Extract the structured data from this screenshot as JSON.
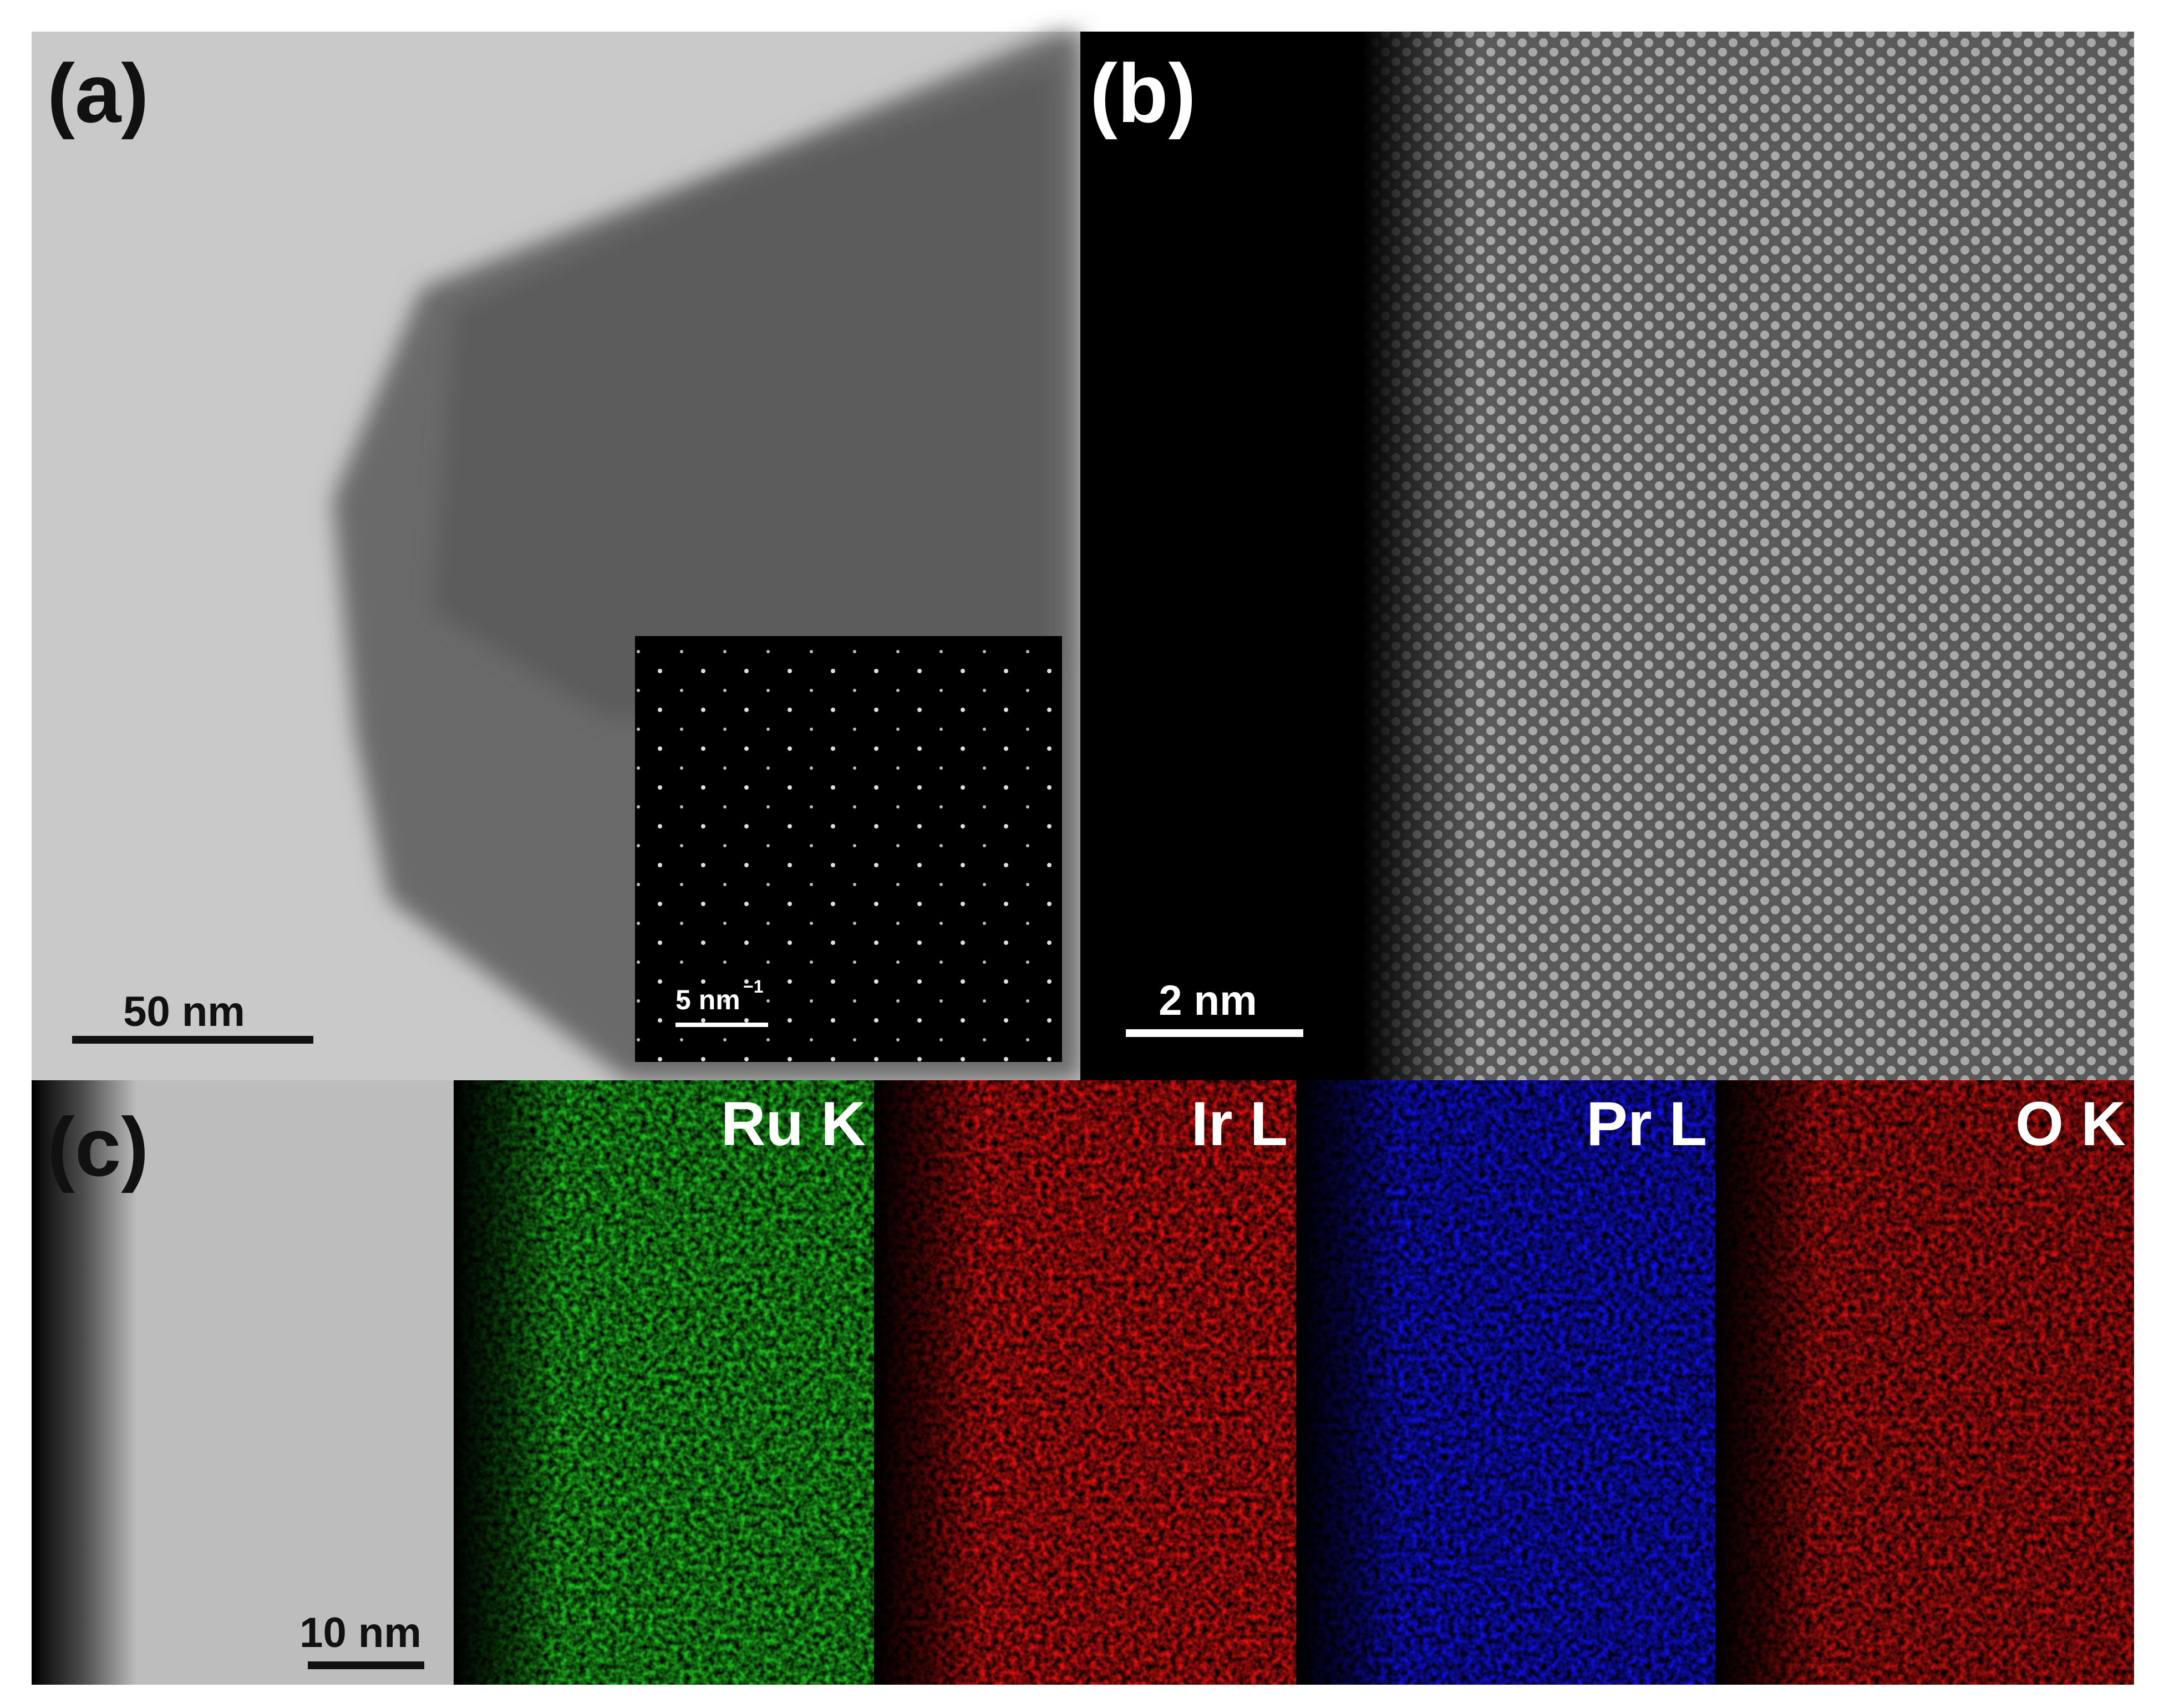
{
  "panels": [
    {
      "label": "(a)",
      "scale_bar": "50 nm",
      "inset": {
        "scale_bar": "5 nm",
        "superscript": "−1"
      }
    },
    {
      "label": "(b)",
      "scale_bar": "2 nm"
    },
    {
      "label": "(c)",
      "scale_bar": "10 nm",
      "maps": [
        "Ru K",
        "Ir L",
        "Pr L",
        "O K"
      ]
    }
  ]
}
